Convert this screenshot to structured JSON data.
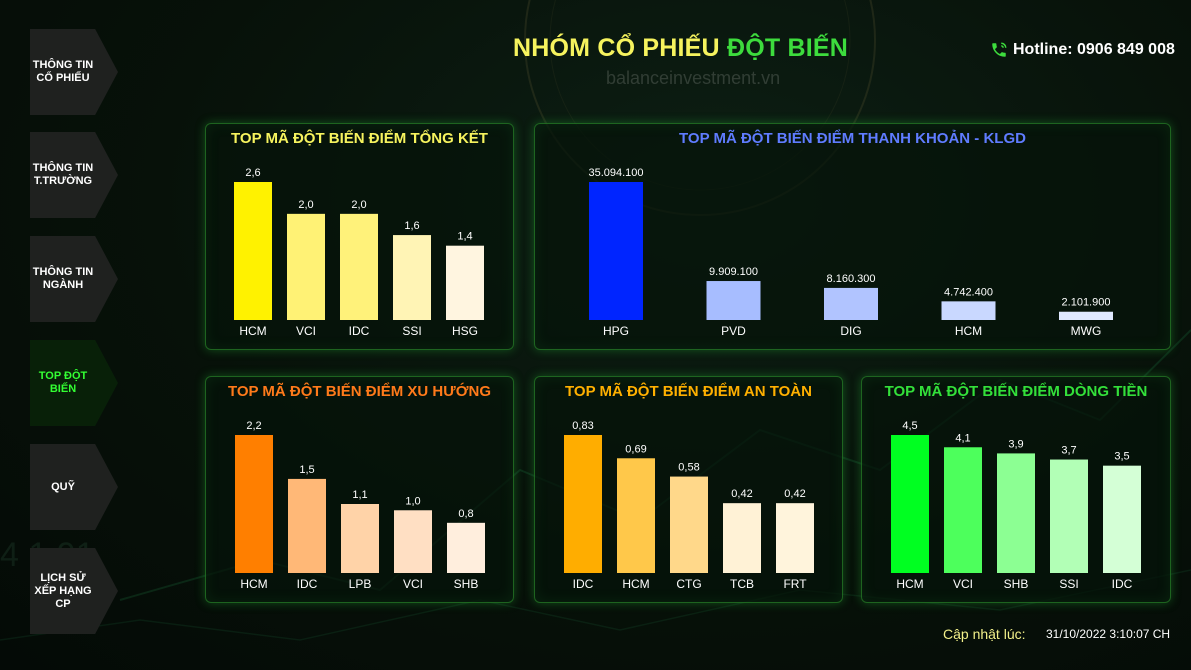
{
  "header": {
    "title_part1": "NHÓM CỔ PHIẾU",
    "title_part2": "ĐỘT BIẾN",
    "hotline": "Hotline: 0906 849 008",
    "watermark": "balanceinvestment.vn"
  },
  "sidebar": {
    "items": [
      {
        "label": "THÔNG TIN CỔ PHIẾU",
        "active": false
      },
      {
        "label": "THÔNG TIN T.TRƯỜNG",
        "active": false
      },
      {
        "label": "THÔNG TIN NGÀNH",
        "active": false
      },
      {
        "label": "TOP ĐỘT BIẾN",
        "active": true
      },
      {
        "label": "QUỸ",
        "active": false
      },
      {
        "label": "LỊCH SỬ XẾP HẠNG CP",
        "active": false
      }
    ]
  },
  "footer": {
    "update_label": "Cập nhật lúc:",
    "update_time": "31/10/2022 3:10:07 CH"
  },
  "chart_data": [
    {
      "type": "bar",
      "title": "TOP MÃ ĐỘT BIẾN ĐIỂM TỔNG KẾT",
      "title_color": "#f6f35e",
      "categories": [
        "HCM",
        "VCI",
        "IDC",
        "SSI",
        "HSG"
      ],
      "values": [
        2.6,
        2.0,
        2.0,
        1.6,
        1.4
      ],
      "value_labels": [
        "2,6",
        "2,0",
        "2,0",
        "1,6",
        "1,4"
      ],
      "colors": [
        "#fff200",
        "#fff275",
        "#fff27a",
        "#fff4b5",
        "#fff5e0"
      ],
      "ylim": [
        0,
        2.6
      ]
    },
    {
      "type": "bar",
      "title": "TOP MÃ ĐỘT BIẾN ĐIỂM THANH KHOẢN - KLGD",
      "title_color": "#5f7cff",
      "categories": [
        "HPG",
        "PVD",
        "DIG",
        "HCM",
        "MWG"
      ],
      "values": [
        35094100,
        9909100,
        8160300,
        4742400,
        2101900
      ],
      "value_labels": [
        "35.094.100",
        "9.909.100",
        "8.160.300",
        "4.742.400",
        "2.101.900"
      ],
      "colors": [
        "#0025ff",
        "#a7bdff",
        "#b1c4ff",
        "#c9d8ff",
        "#dfe8ff"
      ],
      "ylim": [
        0,
        35094100
      ]
    },
    {
      "type": "bar",
      "title": "TOP MÃ ĐỘT BIẾN ĐIỂM XU HƯỚNG",
      "title_color": "#ff7a1a",
      "categories": [
        "HCM",
        "IDC",
        "LPB",
        "VCI",
        "SHB"
      ],
      "values": [
        2.2,
        1.5,
        1.1,
        1.0,
        0.8
      ],
      "value_labels": [
        "2,2",
        "1,5",
        "1,1",
        "1,0",
        "0,8"
      ],
      "colors": [
        "#ff7f00",
        "#ffb877",
        "#ffd3a8",
        "#ffdfc3",
        "#ffeedd"
      ],
      "ylim": [
        0,
        2.2
      ]
    },
    {
      "type": "bar",
      "title": "TOP MÃ ĐỘT BIẾN ĐIỂM AN TOÀN",
      "title_color": "#ffb000",
      "categories": [
        "IDC",
        "HCM",
        "CTG",
        "TCB",
        "FRT"
      ],
      "values": [
        0.83,
        0.69,
        0.58,
        0.42,
        0.42
      ],
      "value_labels": [
        "0,83",
        "0,69",
        "0,58",
        "0,42",
        "0,42"
      ],
      "colors": [
        "#ffad00",
        "#ffc84a",
        "#ffd88a",
        "#fff2d6",
        "#fff4dc"
      ],
      "ylim": [
        0,
        0.83
      ]
    },
    {
      "type": "bar",
      "title": "TOP MÃ ĐỘT BIẾN ĐIỂM DÒNG TIỀN",
      "title_color": "#33e03a",
      "categories": [
        "HCM",
        "VCI",
        "SHB",
        "SSI",
        "IDC"
      ],
      "values": [
        4.5,
        4.1,
        3.9,
        3.7,
        3.5
      ],
      "value_labels": [
        "4,5",
        "4,1",
        "3,9",
        "3,7",
        "3,5"
      ],
      "colors": [
        "#00ff21",
        "#4dff5c",
        "#8cff93",
        "#b2ffb6",
        "#d4ffd6"
      ],
      "ylim": [
        0,
        4.5
      ]
    }
  ]
}
